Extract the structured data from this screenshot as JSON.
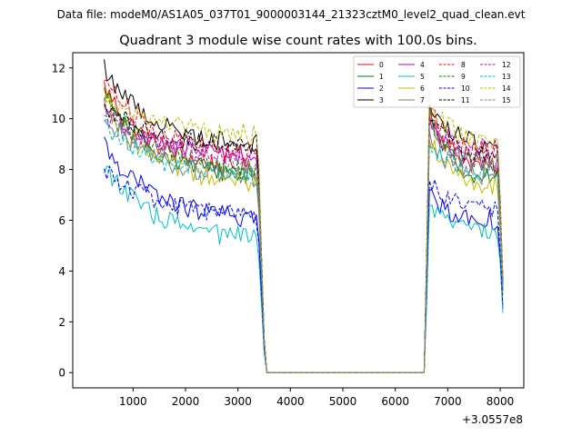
{
  "figure": {
    "suptitle": "Data file: modeM0/AS1A05_037T01_9000003144_21323cztM0_level2_quad_clean.evt"
  },
  "chart_data": {
    "type": "line",
    "title": "Quadrant 3 module wise count rates with 100.0s bins.",
    "xlabel": "",
    "ylabel": "",
    "x_offset_label": "+3.0557e8",
    "xlim": [
      -150,
      8450
    ],
    "ylim": [
      -0.6,
      12.6
    ],
    "xticks": [
      1000,
      2000,
      3000,
      4000,
      5000,
      6000,
      7000,
      8000
    ],
    "yticks": [
      0,
      2,
      4,
      6,
      8,
      10,
      12
    ],
    "legend_position": "top-right",
    "gap": {
      "start_x": 3550,
      "end_x": 6550,
      "value": 0
    },
    "segment_a": {
      "x_start": 450,
      "x_end": 3350,
      "step": 50
    },
    "segment_b": {
      "x_start": 6650,
      "x_end": 8050,
      "step": 50
    },
    "series": [
      {
        "name": "0",
        "color": "#ff0000",
        "dashed": false,
        "a_start": 11.3,
        "a_end": 8.0,
        "b_start": 10.4,
        "b_end": 8.0
      },
      {
        "name": "1",
        "color": "#008000",
        "dashed": false,
        "a_start": 11.0,
        "a_end": 7.8,
        "b_start": 10.2,
        "b_end": 7.6
      },
      {
        "name": "2",
        "color": "#0000ff",
        "dashed": false,
        "a_start": 9.0,
        "a_end": 6.1,
        "b_start": 7.0,
        "b_end": 6.0
      },
      {
        "name": "3",
        "color": "#000000",
        "dashed": false,
        "a_start": 12.0,
        "a_end": 9.0,
        "b_start": 10.7,
        "b_end": 8.9
      },
      {
        "name": "4",
        "color": "#bf00bf",
        "dashed": false,
        "a_start": 10.4,
        "a_end": 8.6,
        "b_start": 9.8,
        "b_end": 8.3
      },
      {
        "name": "5",
        "color": "#00bfbf",
        "dashed": false,
        "a_start": 8.2,
        "a_end": 5.3,
        "b_start": 6.5,
        "b_end": 5.6
      },
      {
        "name": "6",
        "color": "#bfbf00",
        "dashed": false,
        "a_start": 10.8,
        "a_end": 7.4,
        "b_start": 9.4,
        "b_end": 7.3
      },
      {
        "name": "7",
        "color": "#808080",
        "dashed": false,
        "a_start": 10.2,
        "a_end": 7.7,
        "b_start": 9.3,
        "b_end": 7.7
      },
      {
        "name": "8",
        "color": "#ff0000",
        "dashed": true,
        "a_start": 11.7,
        "a_end": 8.6,
        "b_start": 10.5,
        "b_end": 8.6
      },
      {
        "name": "9",
        "color": "#008000",
        "dashed": true,
        "a_start": 10.9,
        "a_end": 8.0,
        "b_start": 10.0,
        "b_end": 8.0
      },
      {
        "name": "10",
        "color": "#0000ff",
        "dashed": true,
        "a_start": 8.1,
        "a_end": 6.2,
        "b_start": 7.5,
        "b_end": 6.4
      },
      {
        "name": "11",
        "color": "#000000",
        "dashed": true,
        "a_start": 10.6,
        "a_end": 8.9,
        "b_start": 10.1,
        "b_end": 8.5
      },
      {
        "name": "12",
        "color": "#bf00bf",
        "dashed": true,
        "a_start": 10.1,
        "a_end": 8.5,
        "b_start": 9.6,
        "b_end": 8.9
      },
      {
        "name": "13",
        "color": "#00bfbf",
        "dashed": true,
        "a_start": 9.8,
        "a_end": 7.8,
        "b_start": 9.1,
        "b_end": 7.9
      },
      {
        "name": "14",
        "color": "#bfbf00",
        "dashed": true,
        "a_start": 11.0,
        "a_end": 9.4,
        "b_start": 10.8,
        "b_end": 9.0
      },
      {
        "name": "15",
        "color": "#808080",
        "dashed": true,
        "a_start": 10.3,
        "a_end": 8.1,
        "b_start": 9.7,
        "b_end": 8.2
      }
    ]
  }
}
